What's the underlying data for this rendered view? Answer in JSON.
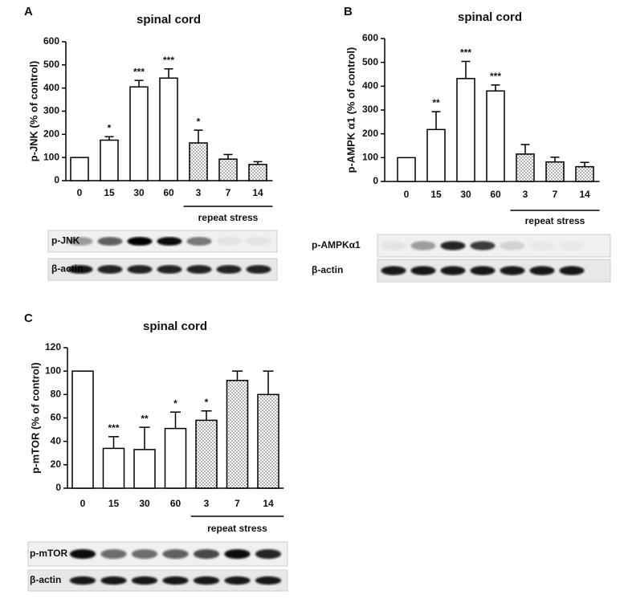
{
  "chart_data": [
    {
      "type": "bar",
      "panel": "A",
      "title": "spinal cord",
      "ylabel": "p-JNK (% of control)",
      "categories": [
        "0",
        "15",
        "30",
        "60",
        "3",
        "7",
        "14"
      ],
      "values": [
        100,
        175,
        405,
        443,
        163,
        93,
        70
      ],
      "errors": [
        0,
        15,
        28,
        40,
        55,
        20,
        12
      ],
      "significance": [
        null,
        "*",
        "***",
        "***",
        "*",
        null,
        null
      ],
      "fills": [
        "white",
        "white",
        "white",
        "white",
        "dotted",
        "dotted",
        "dotted"
      ],
      "group_label": "repeat stress",
      "ylim": [
        0,
        600
      ],
      "yticks": [
        0,
        100,
        200,
        300,
        400,
        500,
        600
      ],
      "blots": [
        "p-JNK",
        "β-actin"
      ]
    },
    {
      "type": "bar",
      "panel": "B",
      "title": "spinal cord",
      "ylabel": "p-AMPK α1 (% of control)",
      "categories": [
        "0",
        "15",
        "30",
        "60",
        "3",
        "7",
        "14"
      ],
      "values": [
        100,
        218,
        432,
        380,
        115,
        82,
        62
      ],
      "errors": [
        0,
        75,
        72,
        25,
        40,
        20,
        18
      ],
      "significance": [
        null,
        "**",
        "***",
        "***",
        null,
        null,
        null
      ],
      "fills": [
        "white",
        "white",
        "white",
        "white",
        "dotted",
        "dotted",
        "dotted"
      ],
      "group_label": "repeat stress",
      "ylim": [
        0,
        600
      ],
      "yticks": [
        0,
        100,
        200,
        300,
        400,
        500,
        600
      ],
      "blots": [
        "p-AMPKα1",
        "β-actin"
      ]
    },
    {
      "type": "bar",
      "panel": "C",
      "title": "spinal cord",
      "ylabel": "p-mTOR (% of control)",
      "categories": [
        "0",
        "15",
        "30",
        "60",
        "3",
        "7",
        "14"
      ],
      "values": [
        100,
        34,
        33,
        51,
        58,
        92,
        80
      ],
      "errors": [
        0,
        10,
        19,
        14,
        8,
        8,
        20
      ],
      "significance": [
        null,
        "***",
        "**",
        "*",
        "*",
        null,
        null
      ],
      "fills": [
        "white",
        "white",
        "white",
        "white",
        "dotted",
        "dotted",
        "dotted"
      ],
      "group_label": "repeat stress",
      "ylim": [
        0,
        120
      ],
      "yticks": [
        0,
        20,
        40,
        60,
        80,
        100,
        120
      ],
      "blots": [
        "p-mTOR",
        "β-actin"
      ]
    }
  ]
}
